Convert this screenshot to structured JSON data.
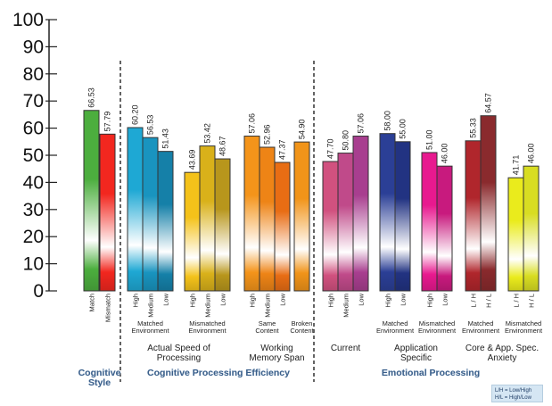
{
  "chart_data": {
    "type": "bar",
    "ylim": [
      0,
      100
    ],
    "yticks": [
      0,
      10,
      20,
      30,
      40,
      50,
      60,
      70,
      80,
      90,
      100
    ],
    "grid": false,
    "title": "",
    "xlabel": "",
    "ylabel": "",
    "bars": [
      {
        "label": "Match",
        "value": 66.53,
        "value_label": "66.53",
        "color": "#4cae3e",
        "label_rotated": true
      },
      {
        "label": "Mismatch",
        "value": 57.79,
        "value_label": "57.79",
        "color": "#f2271f",
        "label_rotated": true
      },
      {
        "label": "High",
        "value": 60.2,
        "value_label": "60.20",
        "color": "#1ea8d4",
        "label_rotated": true
      },
      {
        "label": "Medium",
        "value": 56.53,
        "value_label": "56.53",
        "color": "#1994bf",
        "label_rotated": true
      },
      {
        "label": "Low",
        "value": 51.43,
        "value_label": "51.43",
        "color": "#1580a8",
        "label_rotated": true
      },
      {
        "label": "High",
        "value": 43.69,
        "value_label": "43.69",
        "color": "#f4c21a",
        "label_rotated": true
      },
      {
        "label": "Medium",
        "value": 53.42,
        "value_label": "53.42",
        "color": "#d9b11a",
        "label_rotated": true
      },
      {
        "label": "Low",
        "value": 48.67,
        "value_label": "48.67",
        "color": "#b8961c",
        "label_rotated": true
      },
      {
        "label": "High",
        "value": 57.06,
        "value_label": "57.06",
        "color": "#f4941a",
        "label_rotated": true
      },
      {
        "label": "Medium",
        "value": 52.96,
        "value_label": "52.96",
        "color": "#ee8416",
        "label_rotated": true
      },
      {
        "label": "Low",
        "value": 47.37,
        "value_label": "47.37",
        "color": "#e86d14",
        "label_rotated": true
      },
      {
        "label": "",
        "value": 54.9,
        "value_label": "54.90",
        "color": "#f19419",
        "label_rotated": false
      },
      {
        "label": "High",
        "value": 47.7,
        "value_label": "47.70",
        "color": "#d1517f",
        "label_rotated": true
      },
      {
        "label": "Medium",
        "value": 50.8,
        "value_label": "50.80",
        "color": "#c04a8a",
        "label_rotated": true
      },
      {
        "label": "Low",
        "value": 57.06,
        "value_label": "57.06",
        "color": "#a83e8f",
        "label_rotated": true
      },
      {
        "label": "High",
        "value": 58.0,
        "value_label": "58.00",
        "color": "#2b3f96",
        "label_rotated": true
      },
      {
        "label": "Low",
        "value": 55.0,
        "value_label": "55.00",
        "color": "#223382",
        "label_rotated": true
      },
      {
        "label": "High",
        "value": 51.0,
        "value_label": "51.00",
        "color": "#e8198f",
        "label_rotated": true
      },
      {
        "label": "Low",
        "value": 46.0,
        "value_label": "46.00",
        "color": "#c81a7e",
        "label_rotated": true
      },
      {
        "label": "L / H",
        "value": 55.33,
        "value_label": "55.33",
        "color": "#b0262c",
        "label_rotated": true
      },
      {
        "label": "H / L",
        "value": 64.57,
        "value_label": "64.57",
        "color": "#8a2a2d",
        "label_rotated": true
      },
      {
        "label": "L / H",
        "value": 41.71,
        "value_label": "41.71",
        "color": "#eaeb1c",
        "label_rotated": true
      },
      {
        "label": "H / L",
        "value": 46.0,
        "value_label": "46.00",
        "color": "#d8dd22",
        "label_rotated": true
      }
    ],
    "subgroup_labels": [
      {
        "lines": [
          "Matched",
          "Environment"
        ],
        "bars": [
          2,
          4
        ]
      },
      {
        "lines": [
          "Mismatched",
          "Environment"
        ],
        "bars": [
          5,
          7
        ]
      },
      {
        "lines": [
          "Same",
          "Content"
        ],
        "bars": [
          8,
          10
        ]
      },
      {
        "lines": [
          "Broken",
          "Content"
        ],
        "bars": [
          11,
          11
        ]
      },
      {
        "lines": [
          "Matched",
          "Environment"
        ],
        "bars": [
          15,
          16
        ]
      },
      {
        "lines": [
          "Mismatched",
          "Environment"
        ],
        "bars": [
          17,
          18
        ]
      },
      {
        "lines": [
          "Matched",
          "Environment"
        ],
        "bars": [
          19,
          20
        ]
      },
      {
        "lines": [
          "Mismatched",
          "Environment"
        ],
        "bars": [
          21,
          22
        ]
      }
    ],
    "group_labels": [
      {
        "lines": [
          "Actual Speed of",
          "Processing"
        ],
        "bars": [
          2,
          7
        ]
      },
      {
        "lines": [
          "Working",
          "Memory Span"
        ],
        "bars": [
          8,
          11
        ]
      },
      {
        "lines": [
          "Current"
        ],
        "bars": [
          12,
          14
        ]
      },
      {
        "lines": [
          "Application",
          "Specific"
        ],
        "bars": [
          15,
          18
        ]
      },
      {
        "lines": [
          "Core & App. Spec.",
          "Anxiety"
        ],
        "bars": [
          19,
          22
        ]
      }
    ],
    "category_labels": [
      {
        "lines": [
          "Cognitive",
          "Style"
        ],
        "bars": [
          0,
          1
        ]
      },
      {
        "lines": [
          "Cognitive Processing Efficiency"
        ],
        "bars": [
          2,
          11
        ]
      },
      {
        "lines": [
          "Emotional Processing"
        ],
        "bars": [
          12,
          22
        ]
      }
    ],
    "dashed_separators_after_bar": [
      1,
      11
    ],
    "legend_note": [
      "L/H = Low/High",
      "H/L = High/Low"
    ]
  }
}
